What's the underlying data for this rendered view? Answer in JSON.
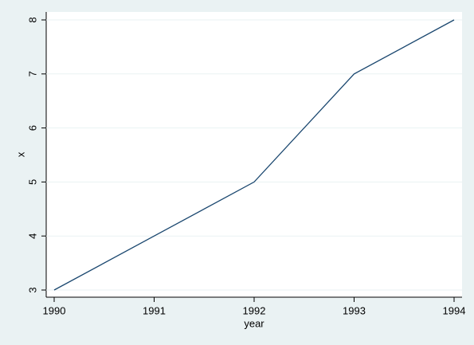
{
  "chart_data": {
    "type": "line",
    "x_label": "year",
    "y_label": "x",
    "x": [
      1990,
      1991,
      1992,
      1993,
      1994
    ],
    "values": [
      3,
      4,
      5,
      7,
      8
    ],
    "color": "#1a476f",
    "xlim": [
      1990,
      1994
    ],
    "xticks": [
      1990,
      1991,
      1992,
      1993,
      1994
    ],
    "ylim": [
      3,
      8
    ],
    "yticks": [
      3,
      4,
      5,
      6,
      7,
      8
    ],
    "grid": true
  }
}
